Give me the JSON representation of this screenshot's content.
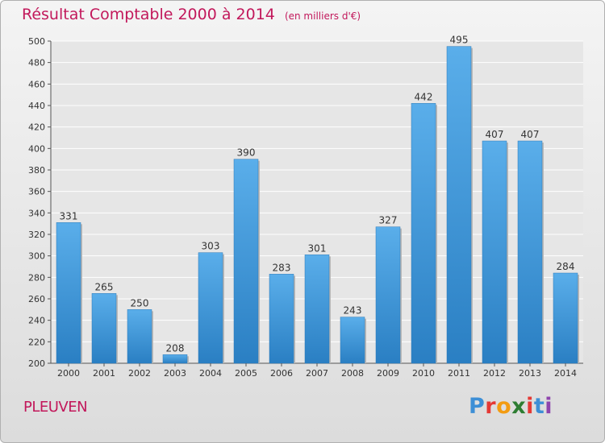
{
  "header": {
    "title": "Résultat Comptable 2000 à 2014",
    "subtitle": "(en milliers d'€)"
  },
  "footer": {
    "place": "PLEUVEN",
    "logo": "Proxiti"
  },
  "colors": {
    "accent": "#c2185b",
    "bar_light": "#5aaeea",
    "bar_dark": "#2a7fc3",
    "grid": "#ffffff"
  },
  "chart_data": {
    "type": "bar",
    "title": "Résultat Comptable 2000 à 2014",
    "subtitle": "(en milliers d'€)",
    "categories": [
      "2000",
      "2001",
      "2002",
      "2003",
      "2004",
      "2005",
      "2006",
      "2007",
      "2008",
      "2009",
      "2010",
      "2011",
      "2012",
      "2013",
      "2014"
    ],
    "values": [
      331,
      265,
      250,
      208,
      303,
      390,
      283,
      301,
      243,
      327,
      442,
      495,
      407,
      407,
      284
    ],
    "ylim": [
      200,
      500
    ],
    "yticks": [
      200,
      220,
      240,
      260,
      280,
      300,
      320,
      340,
      360,
      380,
      400,
      420,
      440,
      460,
      480,
      500
    ],
    "grid": true,
    "data_labels": true
  }
}
